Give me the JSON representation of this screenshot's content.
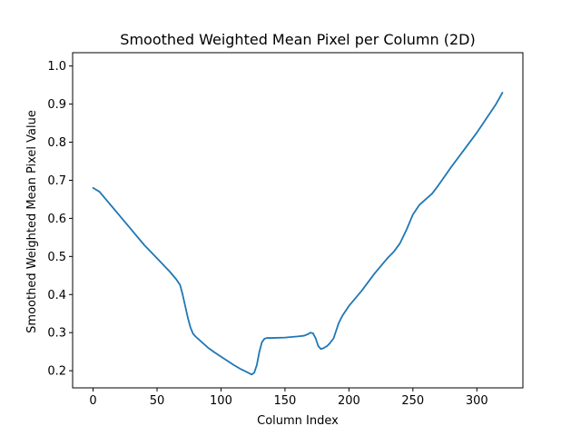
{
  "chart_data": {
    "type": "line",
    "title": "Smoothed Weighted Mean Pixel per Column (2D)",
    "xlabel": "Column Index",
    "ylabel": "Smoothed Weighted Mean Pixel Value",
    "xlim": [
      -16,
      336
    ],
    "ylim": [
      0.155,
      1.035
    ],
    "xticks": [
      0,
      50,
      100,
      150,
      200,
      250,
      300
    ],
    "yticks": [
      0.2,
      0.3,
      0.4,
      0.5,
      0.6,
      0.7,
      0.8,
      0.9,
      1.0
    ],
    "xtick_labels": [
      "0",
      "50",
      "100",
      "150",
      "200",
      "250",
      "300"
    ],
    "ytick_labels": [
      "0.2",
      "0.3",
      "0.4",
      "0.5",
      "0.6",
      "0.7",
      "0.8",
      "0.9",
      "1.0"
    ],
    "grid": false,
    "legend": "none",
    "line_color": "#1f77b4",
    "series": [
      {
        "x": [
          0,
          5,
          10,
          20,
          30,
          40,
          50,
          60,
          65,
          68,
          70,
          72,
          74,
          76,
          78,
          80,
          85,
          90,
          95,
          100,
          105,
          110,
          115,
          120,
          124,
          126,
          128,
          130,
          132,
          134,
          136,
          140,
          150,
          160,
          165,
          168,
          170,
          172,
          174,
          176,
          178,
          180,
          183,
          185,
          188,
          190,
          192,
          195,
          200,
          210,
          220,
          230,
          235,
          240,
          245,
          250,
          255,
          260,
          265,
          270,
          280,
          290,
          300,
          305,
          310,
          315,
          320
        ],
        "y": [
          0.68,
          0.67,
          0.65,
          0.61,
          0.57,
          0.53,
          0.495,
          0.46,
          0.44,
          0.425,
          0.4,
          0.37,
          0.34,
          0.315,
          0.298,
          0.29,
          0.275,
          0.26,
          0.248,
          0.237,
          0.226,
          0.215,
          0.205,
          0.197,
          0.19,
          0.195,
          0.215,
          0.25,
          0.275,
          0.284,
          0.286,
          0.286,
          0.287,
          0.29,
          0.292,
          0.296,
          0.3,
          0.298,
          0.285,
          0.265,
          0.257,
          0.259,
          0.265,
          0.272,
          0.285,
          0.305,
          0.325,
          0.345,
          0.37,
          0.41,
          0.455,
          0.495,
          0.512,
          0.535,
          0.57,
          0.61,
          0.635,
          0.65,
          0.665,
          0.687,
          0.735,
          0.78,
          0.825,
          0.85,
          0.875,
          0.9,
          0.93
        ],
        "y_correction_note_removed": true
      }
    ]
  }
}
